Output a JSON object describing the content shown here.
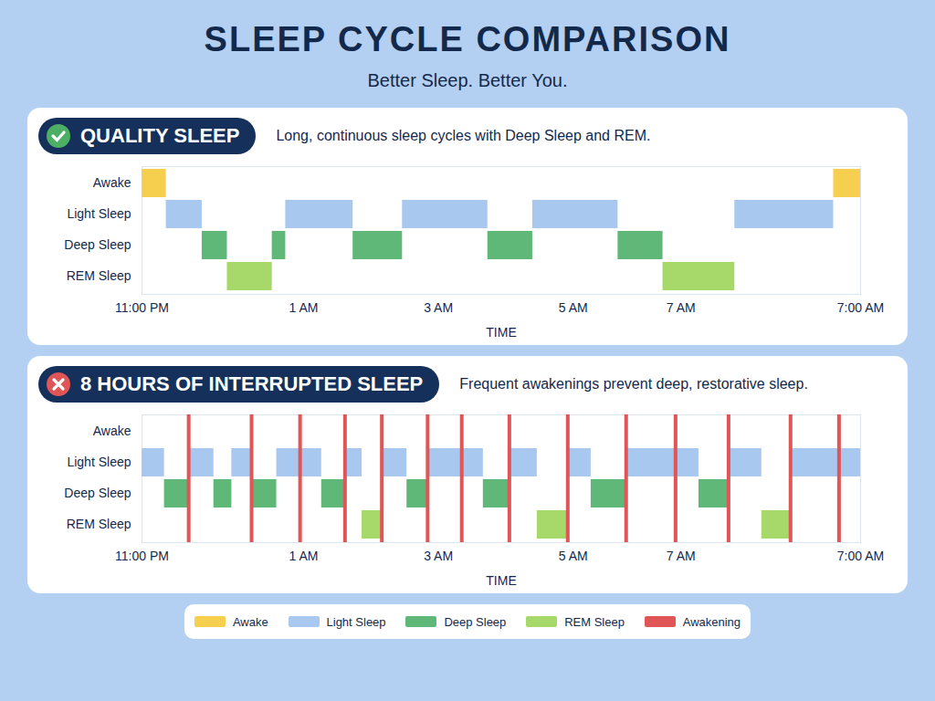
{
  "title": "SLEEP CYCLE COMPARISON",
  "subtitle": "Better Sleep. Better You.",
  "legend": {
    "position": "bottom",
    "items": [
      {
        "name": "Awake",
        "color": "#f7cf4f"
      },
      {
        "name": "Light Sleep",
        "color": "#a8c8f0"
      },
      {
        "name": "Deep Sleep",
        "color": "#5fb877"
      },
      {
        "name": "REM Sleep",
        "color": "#a6d96a"
      },
      {
        "name": "Awakening",
        "color": "#e05555"
      }
    ]
  },
  "chart_data": [
    {
      "type": "timeline",
      "title": "QUALITY SLEEP",
      "subtitle": "Long, continuous sleep cycles with Deep Sleep and REM.",
      "categories": [
        "Awake",
        "Light Sleep",
        "Deep Sleep",
        "REM Sleep"
      ],
      "x_label": "TIME",
      "xlim": [
        0,
        8
      ],
      "xticks": [
        {
          "value": 0,
          "label": "11:00 PM"
        },
        {
          "value": 1.8,
          "label": "1 AM"
        },
        {
          "value": 3.3,
          "label": "3 AM"
        },
        {
          "value": 4.8,
          "label": "5 AM"
        },
        {
          "value": 6,
          "label": "7 AM"
        },
        {
          "value": 8,
          "label": "7:00 AM"
        }
      ],
      "segments": {
        "start": [
          0,
          0.27,
          0.67,
          0.95,
          1.45,
          1.6,
          2.35,
          2.9,
          3.85,
          4.35,
          5.3,
          5.8,
          6.6,
          7.7
        ],
        "end": [
          0.27,
          0.67,
          0.95,
          1.45,
          1.6,
          2.35,
          2.9,
          3.85,
          4.35,
          5.3,
          5.8,
          6.6,
          7.7,
          8
        ],
        "stage": [
          "Awake",
          "Light Sleep",
          "Deep Sleep",
          "REM Sleep",
          "Deep Sleep",
          "Light Sleep",
          "Deep Sleep",
          "Light Sleep",
          "Deep Sleep",
          "Light Sleep",
          "Deep Sleep",
          "REM Sleep",
          "Light Sleep",
          "Awake"
        ]
      }
    },
    {
      "type": "timeline",
      "title": "8 HOURS OF INTERRUPTED SLEEP",
      "subtitle": "Frequent awakenings prevent deep, restorative sleep.",
      "categories": [
        "Awake",
        "Light Sleep",
        "Deep Sleep",
        "REM Sleep"
      ],
      "x_label": "TIME",
      "xlim": [
        0,
        8
      ],
      "xticks": [
        {
          "value": 0,
          "label": "11:00 PM"
        },
        {
          "value": 1.8,
          "label": "1 AM"
        },
        {
          "value": 3.3,
          "label": "3 AM"
        },
        {
          "value": 4.8,
          "label": "5 AM"
        },
        {
          "value": 6,
          "label": "7 AM"
        },
        {
          "value": 8,
          "label": "7:00 AM"
        }
      ],
      "segments": {
        "start": [
          0,
          0.25,
          0.52,
          0.8,
          1.0,
          1.22,
          1.5,
          1.76,
          2.0,
          2.26,
          2.45,
          2.67,
          2.95,
          3.18,
          3.56,
          3.8,
          4.09,
          4.4,
          4.74,
          5.0,
          5.39,
          5.94,
          6.2,
          6.53,
          6.9,
          7.22,
          7.76
        ],
        "end": [
          0.25,
          0.52,
          0.8,
          1.0,
          1.22,
          1.5,
          1.76,
          2.0,
          2.26,
          2.45,
          2.67,
          2.95,
          3.18,
          3.56,
          3.8,
          4.09,
          4.4,
          4.74,
          5.0,
          5.39,
          5.94,
          6.2,
          6.53,
          6.9,
          7.22,
          7.76,
          8
        ],
        "stage": [
          "Light Sleep",
          "Deep Sleep",
          "Light Sleep",
          "Deep Sleep",
          "Light Sleep",
          "Deep Sleep",
          "Light Sleep",
          "Light Sleep",
          "Deep Sleep",
          "Light Sleep",
          "REM Sleep",
          "Light Sleep",
          "Deep Sleep",
          "Light Sleep",
          "Light Sleep",
          "Deep Sleep",
          "Light Sleep",
          "REM Sleep",
          "Light Sleep",
          "Deep Sleep",
          "Light Sleep",
          "Light Sleep",
          "Deep Sleep",
          "Light Sleep",
          "REM Sleep",
          "Light Sleep",
          "Light Sleep"
        ]
      },
      "awakenings": [
        0.52,
        1.22,
        1.76,
        2.26,
        2.67,
        3.18,
        3.56,
        4.09,
        4.74,
        5.39,
        5.94,
        6.53,
        7.22,
        7.76
      ]
    }
  ]
}
